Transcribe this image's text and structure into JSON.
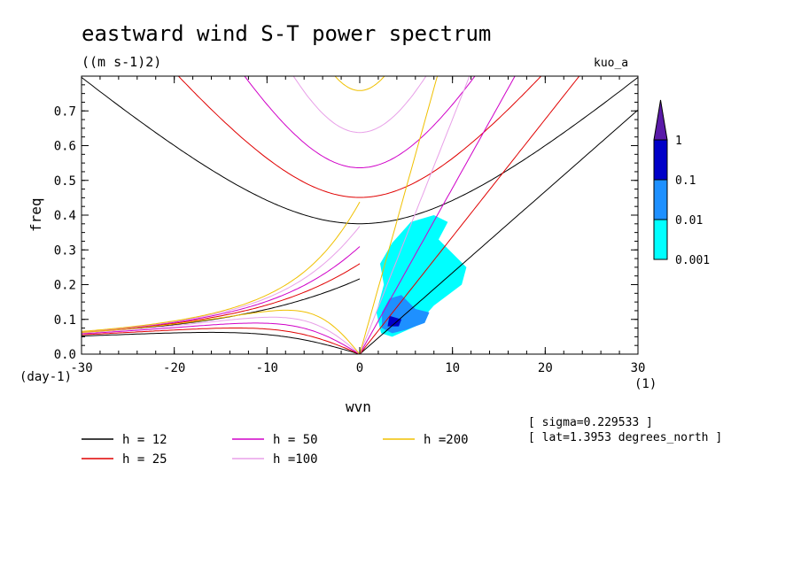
{
  "chart_data": {
    "type": "contour",
    "title": "eastward wind S-T power spectrum",
    "units": "((m s-1)2)",
    "dataset_label": "kuo_a",
    "xlabel": "wvn",
    "x_unit": "(1)",
    "ylabel": "freq",
    "y_unit": "(day-1)",
    "xlim": [
      -30,
      30
    ],
    "ylim": [
      0,
      0.8
    ],
    "x_ticks": [
      "-30",
      "-20",
      "-10",
      "0",
      "10",
      "20",
      "30"
    ],
    "y_ticks": [
      "0.0",
      "0.1",
      "0.2",
      "0.3",
      "0.4",
      "0.5",
      "0.6",
      "0.7"
    ],
    "y_tick_values": [
      0,
      0.1,
      0.2,
      0.3,
      0.4,
      0.5,
      0.6,
      0.7
    ],
    "x_tick_values": [
      -30,
      -20,
      -10,
      0,
      10,
      20,
      30
    ],
    "colorbar": {
      "levels": [
        "0.001",
        "0.01",
        "0.1",
        "1"
      ],
      "colors": [
        "#00ffff",
        "#1e90ff",
        "#0000c8",
        "#5a1aa8"
      ]
    },
    "dispersion_curves": [
      {
        "label": "h = 12",
        "h": 12,
        "color": "#000000"
      },
      {
        "label": "h = 25",
        "h": 25,
        "color": "#e00000"
      },
      {
        "label": "h = 50",
        "h": 50,
        "color": "#d000c8"
      },
      {
        "label": "h =100",
        "h": 100,
        "color": "#e8a0e8"
      },
      {
        "label": "h =200",
        "h": 200,
        "color": "#f0c000"
      }
    ],
    "power_regions": [
      {
        "level": "0.001",
        "color": "#00ffff",
        "points": [
          [
            2.3,
            0.06
          ],
          [
            1.8,
            0.12
          ],
          [
            2.6,
            0.2
          ],
          [
            2.2,
            0.26
          ],
          [
            3.5,
            0.32
          ],
          [
            5.5,
            0.38
          ],
          [
            8,
            0.4
          ],
          [
            9.5,
            0.38
          ],
          [
            8.5,
            0.33
          ],
          [
            11.5,
            0.25
          ],
          [
            11,
            0.2
          ],
          [
            8,
            0.14
          ],
          [
            6,
            0.08
          ],
          [
            3.5,
            0.05
          ]
        ]
      },
      {
        "level": "0.01",
        "color": "#1e90ff",
        "points": [
          [
            2.4,
            0.075
          ],
          [
            2.4,
            0.12
          ],
          [
            3.2,
            0.16
          ],
          [
            4.5,
            0.17
          ],
          [
            6,
            0.13
          ],
          [
            7.5,
            0.12
          ],
          [
            7,
            0.09
          ],
          [
            5,
            0.07
          ],
          [
            3.5,
            0.06
          ]
        ]
      },
      {
        "level": "0.1",
        "color": "#0000c8",
        "points": [
          [
            3,
            0.08
          ],
          [
            3.2,
            0.11
          ],
          [
            4.5,
            0.1
          ],
          [
            4.2,
            0.08
          ]
        ]
      }
    ],
    "annotations": [
      "[ sigma=0.229533 ]",
      "[ lat=1.3953 degrees_north ]"
    ]
  }
}
